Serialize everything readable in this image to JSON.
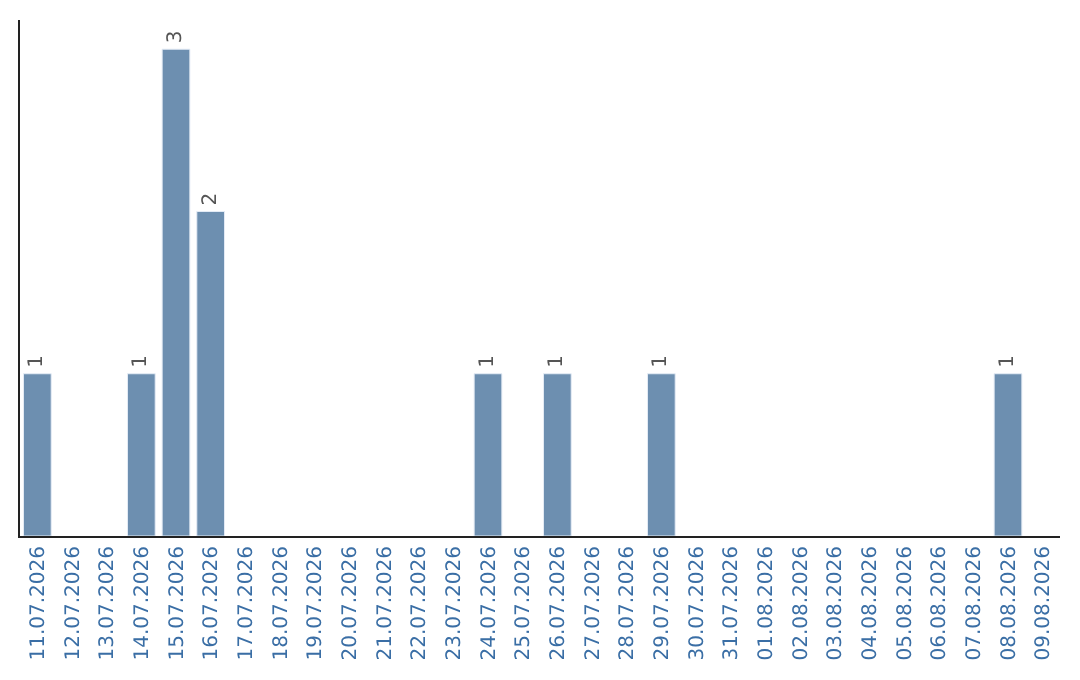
{
  "chart_data": {
    "type": "bar",
    "categories": [
      "11.07.2026",
      "12.07.2026",
      "13.07.2026",
      "14.07.2026",
      "15.07.2026",
      "16.07.2026",
      "17.07.2026",
      "18.07.2026",
      "19.07.2026",
      "20.07.2026",
      "21.07.2026",
      "22.07.2026",
      "23.07.2026",
      "24.07.2026",
      "25.07.2026",
      "26.07.2026",
      "27.07.2026",
      "28.07.2026",
      "29.07.2026",
      "30.07.2026",
      "31.07.2026",
      "01.08.2026",
      "02.08.2026",
      "03.08.2026",
      "04.08.2026",
      "05.08.2026",
      "06.08.2026",
      "07.08.2026",
      "08.08.2026",
      "09.08.2026"
    ],
    "values": [
      1,
      null,
      null,
      1,
      3,
      2,
      null,
      null,
      null,
      null,
      null,
      null,
      null,
      1,
      null,
      1,
      null,
      null,
      1,
      null,
      null,
      null,
      null,
      null,
      null,
      null,
      null,
      null,
      1,
      null
    ],
    "value_labels": [
      "1",
      null,
      null,
      "1",
      "3",
      "2",
      null,
      null,
      null,
      null,
      null,
      null,
      null,
      "1",
      null,
      "1",
      null,
      null,
      "1",
      null,
      null,
      null,
      null,
      null,
      null,
      null,
      null,
      null,
      "1",
      null
    ],
    "color": "#6d8fb0"
  }
}
